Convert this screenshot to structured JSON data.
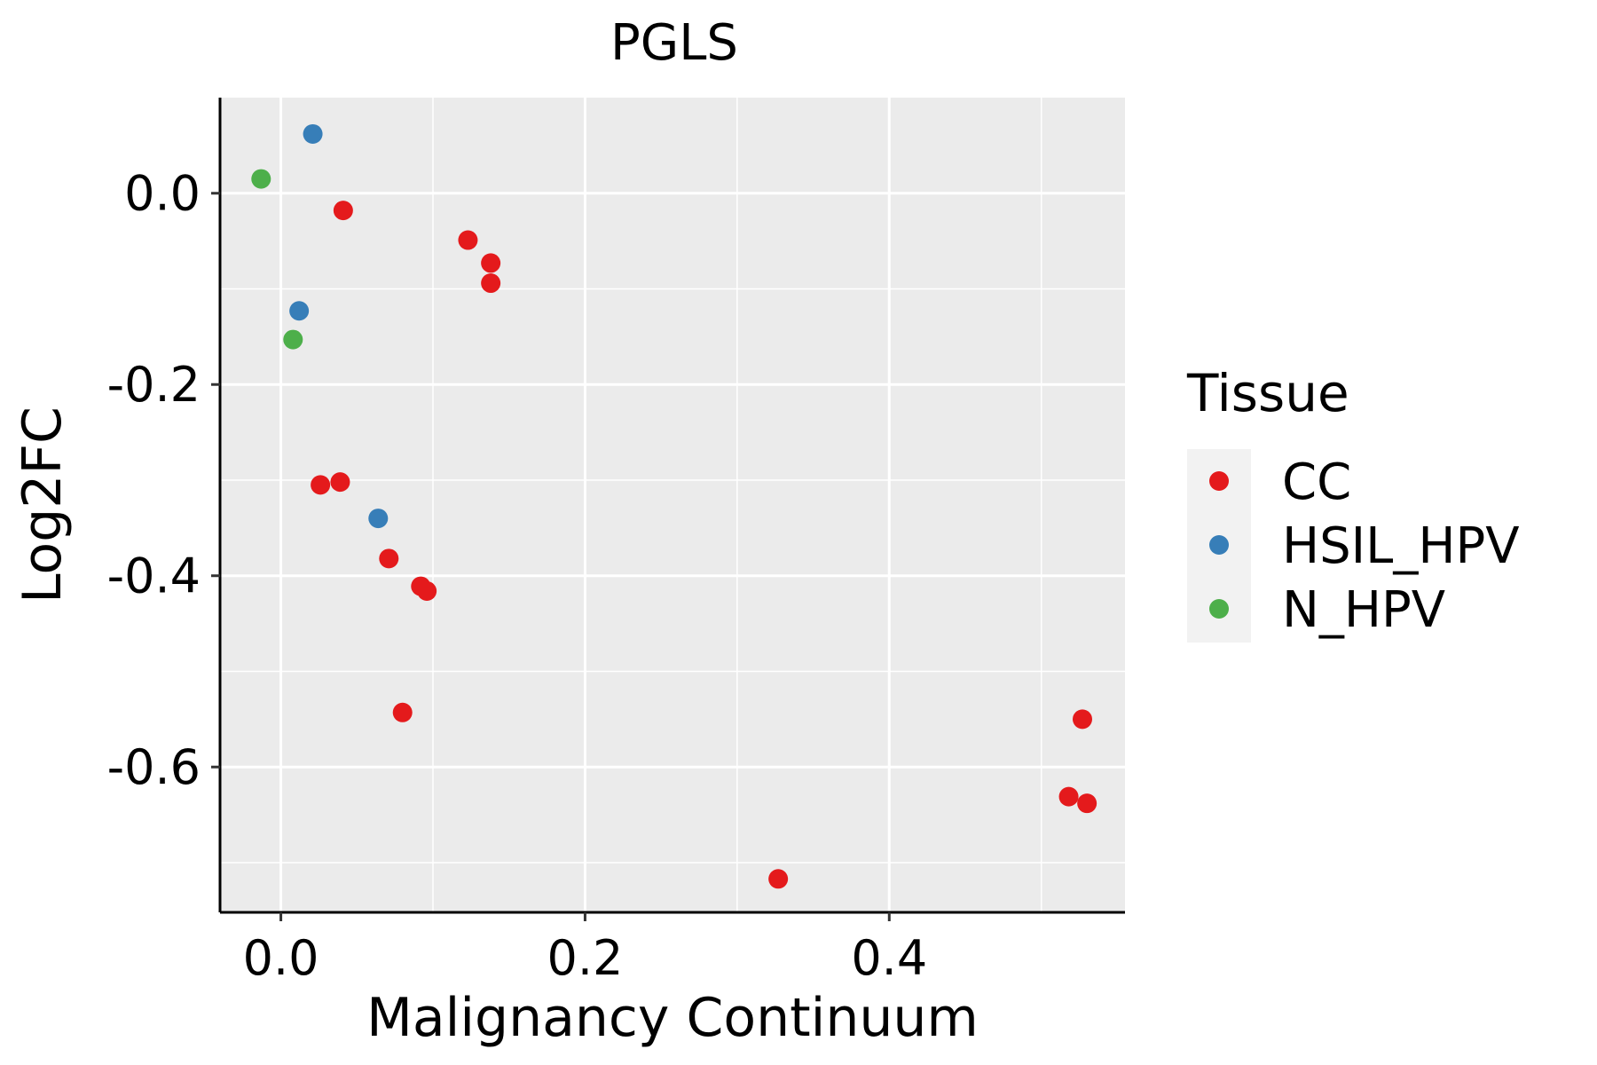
{
  "chart_data": {
    "type": "scatter",
    "title": "PGLS",
    "xlabel": "Malignancy Continuum",
    "ylabel": "Log2FC",
    "xlim": [
      -0.04,
      0.555
    ],
    "ylim": [
      -0.752,
      0.1
    ],
    "xticks": [
      0.0,
      0.2,
      0.4
    ],
    "xtick_labels": [
      "0.0",
      "0.2",
      "0.4"
    ],
    "yticks": [
      0.0,
      -0.2,
      -0.4,
      -0.6
    ],
    "ytick_labels": [
      "0.0",
      "-0.2",
      "-0.4",
      "-0.6"
    ],
    "grid": true,
    "legend": {
      "title": "Tissue",
      "position": "right",
      "entries": [
        "CC",
        "HSIL_HPV",
        "N_HPV"
      ]
    },
    "colors": {
      "CC": "#E41A1C",
      "HSIL_HPV": "#377EB8",
      "N_HPV": "#4DAF4A"
    },
    "panel_bg": "#EBEBEB",
    "series": [
      {
        "name": "CC",
        "points": [
          {
            "x": 0.041,
            "y": -0.018
          },
          {
            "x": 0.123,
            "y": -0.049
          },
          {
            "x": 0.138,
            "y": -0.073
          },
          {
            "x": 0.138,
            "y": -0.094
          },
          {
            "x": 0.026,
            "y": -0.305
          },
          {
            "x": 0.039,
            "y": -0.302
          },
          {
            "x": 0.071,
            "y": -0.382
          },
          {
            "x": 0.092,
            "y": -0.411
          },
          {
            "x": 0.096,
            "y": -0.416
          },
          {
            "x": 0.08,
            "y": -0.543
          },
          {
            "x": 0.327,
            "y": -0.717
          },
          {
            "x": 0.527,
            "y": -0.55
          },
          {
            "x": 0.518,
            "y": -0.631
          },
          {
            "x": 0.53,
            "y": -0.638
          }
        ]
      },
      {
        "name": "HSIL_HPV",
        "points": [
          {
            "x": 0.021,
            "y": 0.062
          },
          {
            "x": 0.012,
            "y": -0.123
          },
          {
            "x": 0.064,
            "y": -0.34
          }
        ]
      },
      {
        "name": "N_HPV",
        "points": [
          {
            "x": -0.013,
            "y": 0.015
          },
          {
            "x": 0.008,
            "y": -0.153
          }
        ]
      }
    ]
  }
}
